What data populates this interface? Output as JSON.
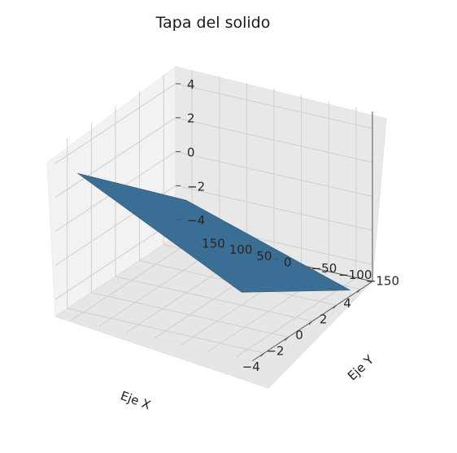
{
  "chart_data": {
    "type": "surface3d",
    "title": "Tapa del solido",
    "xlabel": "Eje X",
    "ylabel": "Eje Y",
    "zlabel": "",
    "xlim": [
      -5,
      5
    ],
    "ylim": [
      -180,
      180
    ],
    "zlim": [
      -5,
      5
    ],
    "x_ticks": [
      "−4",
      "−2",
      "0",
      "2",
      "4"
    ],
    "y_ticks": [
      "−150",
      "−100",
      "−50",
      "0",
      "50",
      "100",
      "150"
    ],
    "z_ticks": [
      "−4",
      "−2",
      "0",
      "2",
      "4"
    ],
    "surface": {
      "color": "#3b6e94",
      "corners": [
        {
          "x": -4.5,
          "y": 150,
          "z": 3.4
        },
        {
          "x": 4.5,
          "y": 150,
          "z": -2.4
        },
        {
          "x": 4.5,
          "y": -150,
          "z": -5.5
        },
        {
          "x": -4.5,
          "y": -150,
          "z": -1.4
        }
      ]
    },
    "grid": true,
    "pane_color": "#f2f2f2"
  }
}
